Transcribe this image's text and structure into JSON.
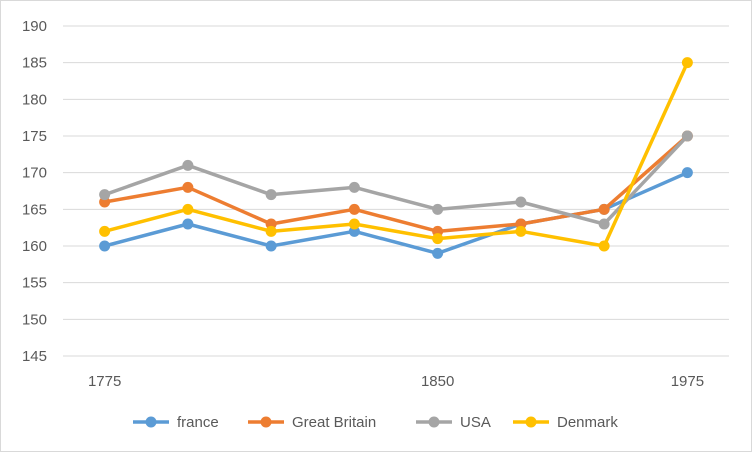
{
  "chart_data": {
    "type": "line",
    "title": "",
    "xlabel": "",
    "ylabel": "",
    "ylim": [
      145,
      190
    ],
    "y_ticks": [
      145,
      150,
      155,
      160,
      165,
      170,
      175,
      180,
      185,
      190
    ],
    "x_tick_labels": [
      "1775",
      "1850",
      "1975"
    ],
    "grid": "horizontal",
    "legend": "bottom",
    "categories": [
      "1775",
      "",
      "",
      "",
      "1850",
      "",
      "",
      "1975"
    ],
    "series": [
      {
        "name": "france",
        "color": "#5b9bd5",
        "values": [
          160,
          163,
          160,
          162,
          159,
          163,
          165,
          170
        ]
      },
      {
        "name": "Great Britain",
        "color": "#ed7d31",
        "values": [
          166,
          168,
          163,
          165,
          162,
          163,
          165,
          175
        ]
      },
      {
        "name": "USA",
        "color": "#a5a5a5",
        "values": [
          167,
          171,
          167,
          168,
          165,
          166,
          163,
          175
        ]
      },
      {
        "name": "Denmark",
        "color": "#ffc000",
        "values": [
          162,
          165,
          162,
          163,
          161,
          162,
          160,
          185
        ]
      }
    ]
  }
}
